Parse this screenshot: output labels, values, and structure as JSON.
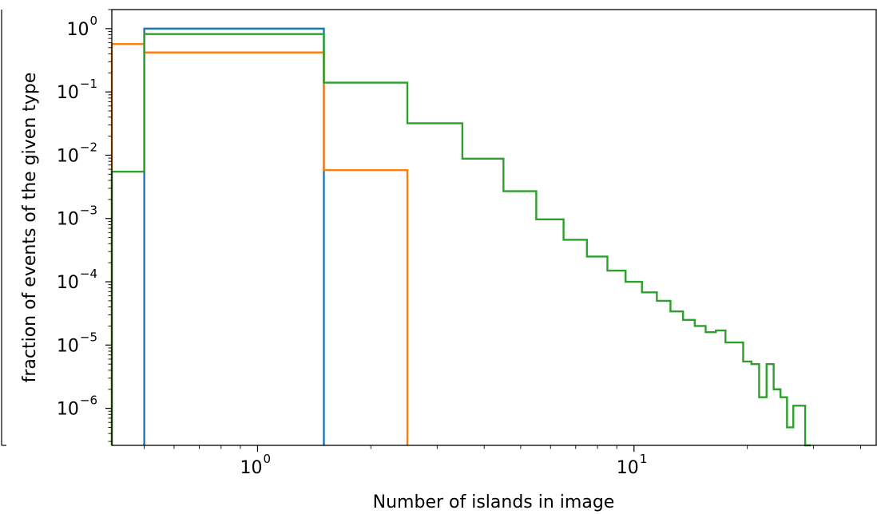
{
  "chart_data": {
    "type": "line",
    "title": "",
    "xlabel": "Number of islands in image",
    "ylabel": "fraction of events of the given type",
    "xscale": "log",
    "yscale": "log",
    "xlim": [
      0.41,
      44
    ],
    "ylim": [
      2.6e-07,
      2.0
    ],
    "grid": false,
    "x_ticks": [
      {
        "value": 1,
        "base": "10",
        "exp": "0"
      },
      {
        "value": 10,
        "base": "10",
        "exp": "1"
      }
    ],
    "y_ticks": [
      {
        "value": 1,
        "base": "10",
        "exp": "0"
      },
      {
        "value": 0.1,
        "base": "10",
        "exp": "−1"
      },
      {
        "value": 0.01,
        "base": "10",
        "exp": "−2"
      },
      {
        "value": 0.001,
        "base": "10",
        "exp": "−3"
      },
      {
        "value": 0.0001,
        "base": "10",
        "exp": "−4"
      },
      {
        "value": 1e-05,
        "base": "10",
        "exp": "−5"
      },
      {
        "value": 1e-06,
        "base": "10",
        "exp": "−6"
      }
    ],
    "series": [
      {
        "color": "#1f77b4",
        "edges": [
          0.5,
          1.5
        ],
        "values": [
          1.0
        ]
      },
      {
        "color": "#ff7f0e",
        "edges": [
          0.41,
          0.5,
          1.5,
          2.5
        ],
        "values": [
          0.57,
          0.42,
          0.0058
        ]
      },
      {
        "color": "#2ca02c",
        "edges": [
          0.41,
          0.5,
          1.5,
          2.5,
          3.5,
          4.5,
          5.5,
          6.5,
          7.5,
          8.5,
          9.5,
          10.5,
          11.5,
          12.5,
          13.5,
          14.5,
          15.5,
          16.5,
          17.5,
          18.5,
          19.5,
          20.5,
          21.5,
          22.5,
          23.5,
          24.5,
          25.5,
          26.5,
          27.5,
          28.5,
          29.5
        ],
        "values": [
          0.0055,
          0.82,
          0.14,
          0.032,
          0.0088,
          0.0027,
          0.00097,
          0.00046,
          0.00025,
          0.00015,
          0.0001,
          6.8e-05,
          5e-05,
          3.4e-05,
          2.5e-05,
          2e-05,
          1.6e-05,
          1.7e-05,
          1.1e-05,
          1.1e-05,
          5.5e-06,
          5e-06,
          1.5e-06,
          5e-06,
          2e-06,
          1.5e-06,
          5e-07,
          1.1e-06,
          1.1e-06,
          2.6e-07
        ]
      }
    ]
  }
}
